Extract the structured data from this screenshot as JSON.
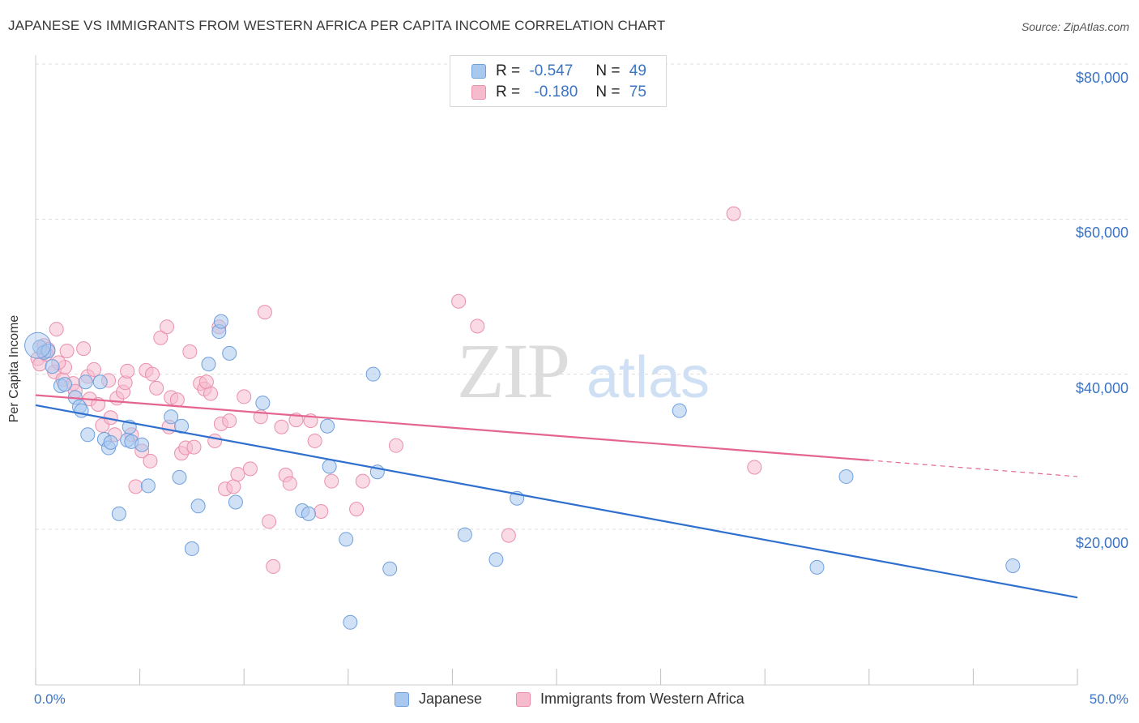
{
  "title": "JAPANESE VS IMMIGRANTS FROM WESTERN AFRICA PER CAPITA INCOME CORRELATION CHART",
  "source": "Source: ZipAtlas.com",
  "watermark": {
    "zip": "ZIP",
    "atlas": "atlas"
  },
  "legend_stats": [
    {
      "r_label": "R =",
      "r_value": "-0.547",
      "n_label": "N =",
      "n_value": "49"
    },
    {
      "r_label": "R =",
      "r_value": "-0.180",
      "n_label": "N =",
      "n_value": "75"
    }
  ],
  "colors": {
    "blue_fill": "#a9c8ef",
    "blue_stroke": "#6e9fdc",
    "blue_line": "#2f6fce",
    "pink_fill": "#f6bccd",
    "pink_stroke": "#ea8fab",
    "pink_line": "#e4658f",
    "tick_text": "#3b74c4",
    "grid": "#dcdcdc"
  },
  "chart_data": {
    "type": "scatter",
    "title": "JAPANESE VS IMMIGRANTS FROM WESTERN AFRICA PER CAPITA INCOME CORRELATION CHART",
    "xlabel": "",
    "ylabel": "Per Capita Income",
    "xlim": [
      0,
      50
    ],
    "ylim": [
      0,
      82000
    ],
    "x_tick_labels": [
      "0.0%",
      "50.0%"
    ],
    "y_ticks": [
      20000,
      40000,
      60000,
      80000
    ],
    "y_tick_labels": [
      "$20,000",
      "$40,000",
      "$60,000",
      "$80,000"
    ],
    "grid": true,
    "legend_position": "bottom",
    "series": [
      {
        "name": "Japanese",
        "color": "#6e9fdc",
        "trend": {
          "x": [
            0,
            50
          ],
          "y": [
            36000,
            11200
          ]
        },
        "points": [
          [
            0.2,
            43500
          ],
          [
            0.4,
            42800
          ],
          [
            0.6,
            43000
          ],
          [
            0.8,
            41000
          ],
          [
            1.2,
            38500
          ],
          [
            1.4,
            38700
          ],
          [
            1.9,
            37000
          ],
          [
            2.1,
            35800
          ],
          [
            2.2,
            35300
          ],
          [
            2.4,
            39000
          ],
          [
            2.5,
            32200
          ],
          [
            3.1,
            39000
          ],
          [
            3.3,
            31600
          ],
          [
            3.5,
            30500
          ],
          [
            3.6,
            31200
          ],
          [
            4.0,
            22000
          ],
          [
            4.4,
            31500
          ],
          [
            4.5,
            33200
          ],
          [
            4.6,
            31300
          ],
          [
            5.1,
            30900
          ],
          [
            5.4,
            25600
          ],
          [
            6.5,
            34500
          ],
          [
            6.9,
            26700
          ],
          [
            7.0,
            33300
          ],
          [
            7.5,
            17500
          ],
          [
            7.8,
            23000
          ],
          [
            8.3,
            41300
          ],
          [
            8.8,
            45500
          ],
          [
            8.9,
            46800
          ],
          [
            9.3,
            42700
          ],
          [
            9.6,
            23500
          ],
          [
            10.9,
            36300
          ],
          [
            12.8,
            22400
          ],
          [
            13.1,
            22000
          ],
          [
            14.0,
            33300
          ],
          [
            14.1,
            28100
          ],
          [
            14.9,
            18700
          ],
          [
            15.1,
            8000
          ],
          [
            16.2,
            40000
          ],
          [
            16.4,
            27400
          ],
          [
            17.0,
            14900
          ],
          [
            20.6,
            19300
          ],
          [
            22.1,
            16100
          ],
          [
            23.1,
            24000
          ],
          [
            30.9,
            35300
          ],
          [
            37.5,
            15100
          ],
          [
            38.9,
            26800
          ],
          [
            46.9,
            15300
          ],
          [
            0.1,
            43700
          ]
        ]
      },
      {
        "name": "Immigrants from Western Africa",
        "color": "#ea8fab",
        "trend": {
          "x": [
            0,
            40
          ],
          "y": [
            37300,
            28900
          ]
        },
        "trend_dashed": {
          "x": [
            40,
            50
          ],
          "y": [
            28900,
            26800
          ]
        },
        "points": [
          [
            0.1,
            42000
          ],
          [
            0.2,
            41300
          ],
          [
            0.4,
            43700
          ],
          [
            0.6,
            43200
          ],
          [
            0.9,
            40300
          ],
          [
            1.0,
            45800
          ],
          [
            1.3,
            39300
          ],
          [
            1.4,
            40900
          ],
          [
            1.5,
            43000
          ],
          [
            1.8,
            38800
          ],
          [
            1.9,
            37800
          ],
          [
            2.3,
            43300
          ],
          [
            2.5,
            39700
          ],
          [
            2.6,
            36800
          ],
          [
            2.8,
            40600
          ],
          [
            3.0,
            36100
          ],
          [
            3.2,
            33400
          ],
          [
            3.5,
            39200
          ],
          [
            3.6,
            34400
          ],
          [
            3.8,
            32200
          ],
          [
            3.9,
            36900
          ],
          [
            4.2,
            37700
          ],
          [
            4.3,
            38900
          ],
          [
            4.4,
            40400
          ],
          [
            4.6,
            32200
          ],
          [
            4.8,
            25500
          ],
          [
            5.1,
            30100
          ],
          [
            5.3,
            40500
          ],
          [
            5.5,
            28800
          ],
          [
            5.6,
            40000
          ],
          [
            5.8,
            38200
          ],
          [
            6.0,
            44700
          ],
          [
            6.3,
            46100
          ],
          [
            6.4,
            33200
          ],
          [
            6.5,
            37000
          ],
          [
            6.8,
            36700
          ],
          [
            7.0,
            29800
          ],
          [
            7.2,
            30500
          ],
          [
            7.4,
            42900
          ],
          [
            7.6,
            30600
          ],
          [
            7.9,
            38800
          ],
          [
            8.1,
            38100
          ],
          [
            8.2,
            39000
          ],
          [
            8.4,
            37500
          ],
          [
            8.6,
            31400
          ],
          [
            8.8,
            46100
          ],
          [
            8.9,
            33600
          ],
          [
            9.1,
            25200
          ],
          [
            9.3,
            34000
          ],
          [
            9.5,
            25500
          ],
          [
            9.7,
            27100
          ],
          [
            10.0,
            37100
          ],
          [
            10.3,
            27800
          ],
          [
            10.8,
            34500
          ],
          [
            11.0,
            48000
          ],
          [
            11.2,
            21000
          ],
          [
            11.4,
            15200
          ],
          [
            11.8,
            33200
          ],
          [
            12.0,
            27000
          ],
          [
            12.2,
            25900
          ],
          [
            12.5,
            34100
          ],
          [
            13.2,
            34000
          ],
          [
            13.4,
            31400
          ],
          [
            13.7,
            22300
          ],
          [
            14.2,
            26200
          ],
          [
            15.4,
            22600
          ],
          [
            15.7,
            26200
          ],
          [
            17.3,
            30800
          ],
          [
            20.3,
            49400
          ],
          [
            21.2,
            46200
          ],
          [
            22.7,
            19200
          ],
          [
            33.5,
            60700
          ],
          [
            34.5,
            28000
          ],
          [
            0.5,
            42600
          ],
          [
            1.1,
            41500
          ]
        ]
      }
    ]
  },
  "bottom_legend": [
    {
      "label": "Japanese"
    },
    {
      "label": "Immigrants from Western Africa"
    }
  ]
}
